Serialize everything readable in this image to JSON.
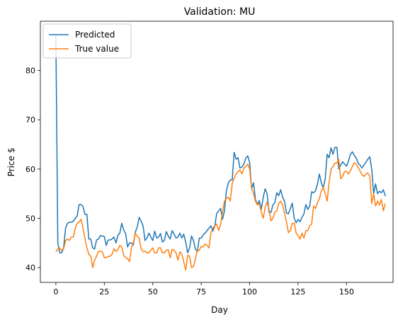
{
  "chart_data": {
    "type": "line",
    "title": "Validation: MU",
    "xlabel": "Day",
    "ylabel": "Price $",
    "xlim": [
      -8,
      174
    ],
    "ylim": [
      37,
      90
    ],
    "xticks": [
      0,
      25,
      50,
      75,
      100,
      125,
      150
    ],
    "yticks": [
      40,
      50,
      60,
      70,
      80
    ],
    "grid": false,
    "legend_position": "upper-left",
    "series": [
      {
        "name": "Predicted",
        "color": "#1f77b4",
        "values": [
          87.0,
          45.0,
          43.0,
          43.0,
          44.0,
          48.0,
          49.0,
          49.2,
          49.2,
          49.4,
          50.0,
          50.5,
          52.8,
          52.8,
          52.4,
          50.8,
          50.8,
          45.8,
          45.8,
          44.0,
          43.8,
          45.6,
          45.8,
          46.5,
          46.4,
          46.3,
          44.5,
          45.6,
          45.6,
          45.8,
          46.2,
          45.0,
          46.5,
          47.0,
          49.0,
          47.6,
          46.9,
          44.2,
          45.0,
          45.0,
          44.6,
          47.2,
          48.2,
          50.2,
          49.4,
          48.5,
          45.5,
          46.0,
          47.0,
          46.2,
          45.5,
          47.4,
          46.0,
          46.2,
          46.9,
          45.2,
          45.5,
          47.3,
          46.4,
          45.8,
          47.5,
          46.8,
          46.0,
          46.2,
          47.0,
          46.0,
          46.8,
          45.2,
          43.0,
          44.0,
          46.4,
          45.5,
          43.8,
          43.2,
          46.0,
          46.0,
          46.6,
          47.0,
          47.5,
          48.0,
          48.5,
          47.4,
          48.4,
          51.0,
          51.5,
          52.0,
          49.8,
          51.5,
          55.6,
          57.2,
          57.8,
          57.8,
          63.4,
          62.0,
          62.3,
          60.2,
          60.4,
          61.0,
          62.2,
          62.7,
          61.3,
          56.0,
          57.2,
          53.8,
          52.8,
          53.6,
          51.8,
          54.2,
          56.0,
          55.0,
          51.2,
          51.2,
          52.7,
          53.2,
          55.2,
          54.6,
          55.8,
          54.3,
          53.5,
          51.1,
          50.9,
          52.0,
          53.1,
          50.0,
          49.1,
          49.8,
          49.3,
          50.2,
          50.9,
          52.8,
          51.8,
          52.5,
          55.4,
          55.2,
          55.6,
          57.0,
          59.0,
          57.2,
          56.2,
          58.0,
          63.0,
          62.3,
          64.3,
          63.0,
          64.4,
          64.4,
          60.0,
          60.8,
          61.5,
          61.0,
          60.6,
          61.6,
          63.0,
          63.5,
          62.8,
          62.2,
          61.2,
          60.8,
          60.2,
          60.8,
          61.4,
          62.0,
          62.5,
          60.0,
          55.0,
          57.0,
          55.0,
          55.5,
          55.2,
          55.8,
          54.5
        ]
      },
      {
        "name": "True value",
        "color": "#ff7f0e",
        "values": [
          43.2,
          43.8,
          44.0,
          43.5,
          43.8,
          45.5,
          45.8,
          45.5,
          46.2,
          46.2,
          48.0,
          49.0,
          49.3,
          49.8,
          48.0,
          46.0,
          44.0,
          42.7,
          42.3,
          40.0,
          41.5,
          42.3,
          43.3,
          43.3,
          43.2,
          42.0,
          42.0,
          42.3,
          42.3,
          42.7,
          43.8,
          43.3,
          43.6,
          44.5,
          44.2,
          42.5,
          42.0,
          41.8,
          41.2,
          44.0,
          45.0,
          47.0,
          46.3,
          46.0,
          43.8,
          43.2,
          43.3,
          43.0,
          43.0,
          43.5,
          44.0,
          43.0,
          43.0,
          44.0,
          44.0,
          43.0,
          43.0,
          43.5,
          43.6,
          42.0,
          43.7,
          43.5,
          43.0,
          41.5,
          43.2,
          42.8,
          41.2,
          39.5,
          42.5,
          42.3,
          40.0,
          40.2,
          41.7,
          43.5,
          43.5,
          44.3,
          44.2,
          44.8,
          44.5,
          44.0,
          47.0,
          48.0,
          48.5,
          48.8,
          47.5,
          48.8,
          51.2,
          53.5,
          54.0,
          54.3,
          53.5,
          57.0,
          58.2,
          59.0,
          59.5,
          59.8,
          59.0,
          60.2,
          60.5,
          61.0,
          60.0,
          56.0,
          55.0,
          53.5,
          52.7,
          53.0,
          51.3,
          50.0,
          52.2,
          53.3,
          51.8,
          49.5,
          50.0,
          51.3,
          51.5,
          53.0,
          53.5,
          52.7,
          51.0,
          49.3,
          47.1,
          47.5,
          49.0,
          49.0,
          47.0,
          46.5,
          45.8,
          47.0,
          46.0,
          47.5,
          47.5,
          48.5,
          48.8,
          52.5,
          52.0,
          53.2,
          54.0,
          55.6,
          56.3,
          55.0,
          53.5,
          57.3,
          60.0,
          60.5,
          61.2,
          61.2,
          62.0,
          58.0,
          58.5,
          59.5,
          59.5,
          59.0,
          59.7,
          60.5,
          61.3,
          61.0,
          60.3,
          59.6,
          58.8,
          58.5,
          59.0,
          59.2,
          58.5,
          53.0,
          55.0,
          52.5,
          53.5,
          52.7,
          53.8,
          51.5,
          53.0
        ]
      }
    ]
  }
}
